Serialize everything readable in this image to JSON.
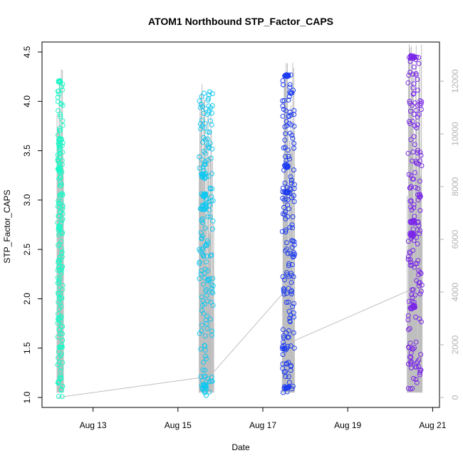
{
  "chart_data": {
    "type": "scatter",
    "title": "ATOM1 Northbound STP_Factor_CAPS",
    "xlabel": "Date",
    "ylabel": "STP_Factor_CAPS",
    "x_ticks": [
      "Aug 13",
      "Aug 15",
      "Aug 17",
      "Aug 19",
      "Aug 21"
    ],
    "y_ticks": [
      "1.0",
      "1.5",
      "2.0",
      "2.5",
      "3.0",
      "3.5",
      "4.0",
      "4.5"
    ],
    "y2_ticks": [
      "0",
      "2000",
      "4000",
      "6000",
      "8000",
      "10000",
      "12000"
    ],
    "xlim": [
      "2023-08-12",
      "2023-08-21"
    ],
    "ylim": [
      1.0,
      4.5
    ],
    "y2lim": [
      0,
      12000
    ],
    "secondary_axis_color": "#b3b3b3",
    "background_line_color": "#bebebe",
    "series": [
      {
        "x_start": "2023-08-12 04:00",
        "x_end": "2023-08-12 07:00",
        "color": "#1FF8C8",
        "clusters": [
          [
            3.53,
            0.18
          ],
          [
            3.31,
            0.05
          ],
          [
            2.72,
            0.03
          ],
          [
            4.2,
            0.02
          ]
        ],
        "y_range": [
          1.0,
          4.2
        ]
      },
      {
        "x_start": "2023-08-15 12:00",
        "x_end": "2023-08-15 20:00",
        "color": "#14C8F0",
        "clusters": [
          [
            2.93,
            0.06
          ],
          [
            3.25,
            0.04
          ],
          [
            3.05,
            0.03
          ],
          [
            1.1,
            0.06
          ]
        ],
        "y_range": [
          1.02,
          4.1
        ]
      },
      {
        "x_start": "2023-08-17 11:00",
        "x_end": "2023-08-17 18:00",
        "color": "#1E3CF0",
        "clusters": [
          [
            1.1,
            0.03
          ],
          [
            3.08,
            0.02
          ],
          [
            3.34,
            0.02
          ],
          [
            4.26,
            0.02
          ]
        ],
        "y_range": [
          1.05,
          4.27
        ]
      },
      {
        "x_start": "2023-08-20 10:00",
        "x_end": "2023-08-20 18:00",
        "color": "#7A28E8",
        "clusters": [
          [
            2.78,
            0.03
          ],
          [
            1.92,
            0.03
          ],
          [
            2.65,
            0.04
          ],
          [
            4.45,
            0.03
          ]
        ],
        "y_range": [
          1.02,
          4.46
        ]
      }
    ],
    "background_line": {
      "points": [
        [
          "2023-08-12 04:00",
          0
        ],
        [
          "2023-08-15 18:00",
          800
        ],
        [
          "2023-08-17 12:00",
          4000
        ],
        [
          "2023-08-17 16:00",
          2100
        ],
        [
          "2023-08-20 12:00",
          4100
        ]
      ]
    }
  }
}
